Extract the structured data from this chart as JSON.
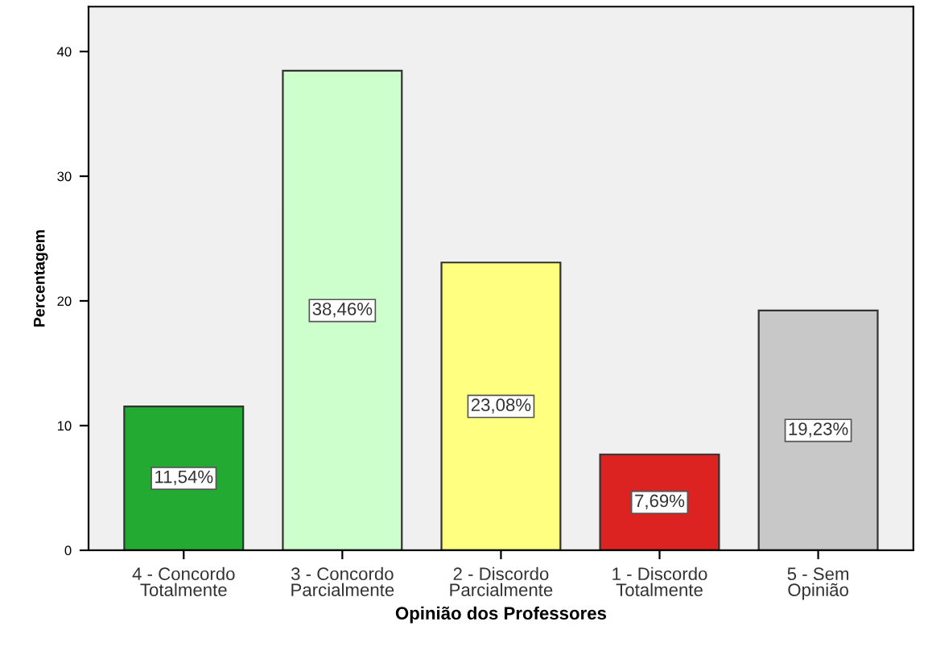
{
  "chart_data": {
    "type": "bar",
    "xlabel": "Opinião dos Professores",
    "ylabel": "Percentagem",
    "categories": [
      "4 - Concordo\nTotalmente",
      "3 - Concordo\nParcialmente",
      "2 - Discordo\nParcialmente",
      "1 - Discordo\nTotalmente",
      "5 - Sem\nOpinião"
    ],
    "values": [
      11.54,
      38.46,
      23.08,
      7.69,
      19.23
    ],
    "value_labels": [
      "11,54%",
      "38,46%",
      "23,08%",
      "7,69%",
      "19,23%"
    ],
    "colors": [
      "#22aa33",
      "#ccffcc",
      "#ffff80",
      "#dd2222",
      "#c8c8c8"
    ],
    "ylim": [
      0,
      43.6
    ],
    "yticks": [
      0,
      10,
      20,
      30,
      40
    ],
    "grid": false,
    "legend": false
  }
}
